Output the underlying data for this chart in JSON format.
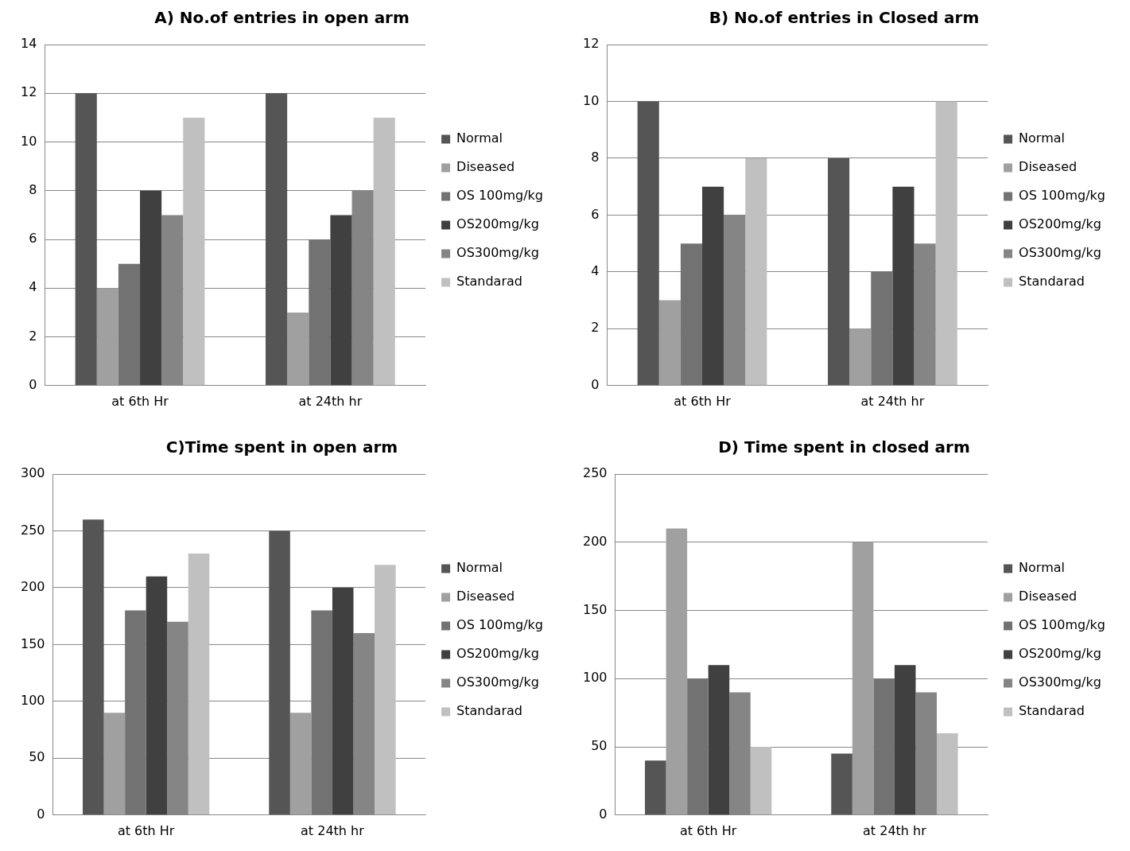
{
  "chart_data": [
    {
      "type": "bar",
      "title": "A) No.of entries in open arm",
      "categories": [
        "at 6th Hr",
        "at 24th hr"
      ],
      "series": [
        {
          "name": "Normal",
          "color": "#555555",
          "values": [
            12,
            12
          ]
        },
        {
          "name": "Diseased",
          "color": "#a0a0a0",
          "values": [
            4,
            3
          ]
        },
        {
          "name": "OS 100mg/kg",
          "color": "#727272",
          "values": [
            5,
            6
          ]
        },
        {
          "name": "OS200mg/kg",
          "color": "#404040",
          "values": [
            8,
            7
          ]
        },
        {
          "name": "OS300mg/kg",
          "color": "#858585",
          "values": [
            7,
            8
          ]
        },
        {
          "name": "Standarad",
          "color": "#c0c0c0",
          "values": [
            11,
            11
          ]
        }
      ],
      "ylim": [
        0,
        14
      ],
      "yticks": [
        0,
        2,
        4,
        6,
        8,
        10,
        12,
        14
      ],
      "grid": "y",
      "legend": "right"
    },
    {
      "type": "bar",
      "title": "B) No.of entries in Closed arm",
      "categories": [
        "at 6th Hr",
        "at 24th hr"
      ],
      "series": [
        {
          "name": "Normal",
          "color": "#555555",
          "values": [
            10,
            8
          ]
        },
        {
          "name": "Diseased",
          "color": "#a0a0a0",
          "values": [
            3,
            2
          ]
        },
        {
          "name": "OS 100mg/kg",
          "color": "#727272",
          "values": [
            5,
            4
          ]
        },
        {
          "name": "OS200mg/kg",
          "color": "#404040",
          "values": [
            7,
            7
          ]
        },
        {
          "name": "OS300mg/kg",
          "color": "#858585",
          "values": [
            6,
            5
          ]
        },
        {
          "name": "Standarad",
          "color": "#c0c0c0",
          "values": [
            8,
            10
          ]
        }
      ],
      "ylim": [
        0,
        12
      ],
      "yticks": [
        0,
        2,
        4,
        6,
        8,
        10,
        12
      ],
      "grid": "y",
      "legend": "right"
    },
    {
      "type": "bar",
      "title": "C)Time spent in open arm",
      "categories": [
        "at 6th Hr",
        "at 24th hr"
      ],
      "series": [
        {
          "name": "Normal",
          "color": "#555555",
          "values": [
            260,
            250
          ]
        },
        {
          "name": "Diseased",
          "color": "#a0a0a0",
          "values": [
            90,
            90
          ]
        },
        {
          "name": "OS 100mg/kg",
          "color": "#727272",
          "values": [
            180,
            180
          ]
        },
        {
          "name": "OS200mg/kg",
          "color": "#404040",
          "values": [
            210,
            200
          ]
        },
        {
          "name": "OS300mg/kg",
          "color": "#858585",
          "values": [
            170,
            160
          ]
        },
        {
          "name": "Standarad",
          "color": "#c0c0c0",
          "values": [
            230,
            220
          ]
        }
      ],
      "ylim": [
        0,
        300
      ],
      "yticks": [
        0,
        50,
        100,
        150,
        200,
        250,
        300
      ],
      "grid": "y",
      "legend": "right"
    },
    {
      "type": "bar",
      "title": "D) Time spent in closed arm",
      "categories": [
        "at 6th Hr",
        "at 24th hr"
      ],
      "series": [
        {
          "name": "Normal",
          "color": "#555555",
          "values": [
            40,
            45
          ]
        },
        {
          "name": "Diseased",
          "color": "#a0a0a0",
          "values": [
            210,
            200
          ]
        },
        {
          "name": "OS 100mg/kg",
          "color": "#727272",
          "values": [
            100,
            100
          ]
        },
        {
          "name": "OS200mg/kg",
          "color": "#404040",
          "values": [
            110,
            110
          ]
        },
        {
          "name": "OS300mg/kg",
          "color": "#858585",
          "values": [
            90,
            90
          ]
        },
        {
          "name": "Standarad",
          "color": "#c0c0c0",
          "values": [
            50,
            60
          ]
        }
      ],
      "ylim": [
        0,
        250
      ],
      "yticks": [
        0,
        50,
        100,
        150,
        200,
        250
      ],
      "grid": "y",
      "legend": "right"
    }
  ]
}
